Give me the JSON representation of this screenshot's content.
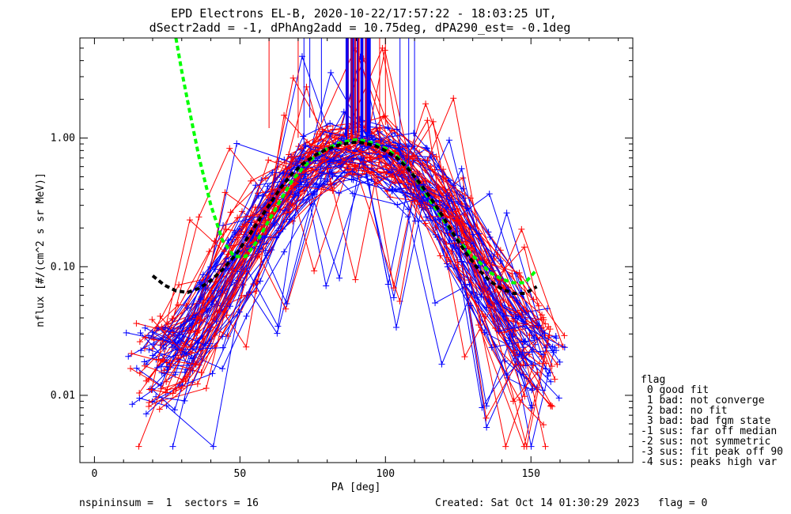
{
  "chart_data": {
    "type": "line",
    "title_lines": [
      "EPD Electrons EL-B, 2020-10-22/17:57:22 - 18:03:25 UT,",
      "dSectr2add = -1, dPhAng2add = 10.75deg, dPA290_est=  -0.1deg"
    ],
    "xlabel": "PA [deg]",
    "ylabel": "nflux [#/(cm^2 s sr MeV)]",
    "xlim": [
      -5,
      185
    ],
    "ylim": [
      0.003,
      6
    ],
    "y_scale": "log",
    "x_ticks": [
      0,
      50,
      100,
      150
    ],
    "y_ticks": [
      0.01,
      0.1,
      1.0
    ],
    "y_tick_labels": [
      "0.01",
      "0.10",
      "1.00"
    ],
    "grid": false,
    "series_colors": {
      "red": "#ff0000",
      "blue": "#0000ff",
      "green": "#00ff00",
      "black": "#000000"
    },
    "fit_curves": [
      {
        "color": "green",
        "x": [
          28,
          30,
          33,
          36,
          40,
          44,
          48,
          52,
          56,
          60,
          64,
          68,
          72,
          76,
          80,
          84,
          88,
          90,
          92,
          96,
          100,
          104,
          108,
          112,
          116,
          120,
          124,
          128,
          132,
          136,
          140,
          144,
          148,
          152
        ],
        "y": [
          6.0,
          3.3,
          1.5,
          0.7,
          0.3,
          0.16,
          0.12,
          0.12,
          0.16,
          0.23,
          0.33,
          0.47,
          0.6,
          0.73,
          0.83,
          0.91,
          0.96,
          0.97,
          0.96,
          0.91,
          0.83,
          0.72,
          0.58,
          0.43,
          0.31,
          0.23,
          0.17,
          0.135,
          0.11,
          0.09,
          0.08,
          0.075,
          0.075,
          0.095
        ]
      },
      {
        "color": "black",
        "x": [
          20,
          24,
          28,
          32,
          36,
          40,
          44,
          48,
          52,
          56,
          60,
          64,
          68,
          72,
          76,
          80,
          84,
          88,
          90,
          92,
          96,
          100,
          104,
          108,
          112,
          116,
          120,
          124,
          128,
          132,
          136,
          140,
          144,
          148,
          152
        ],
        "y": [
          0.085,
          0.072,
          0.065,
          0.063,
          0.068,
          0.078,
          0.095,
          0.12,
          0.16,
          0.22,
          0.3,
          0.41,
          0.53,
          0.64,
          0.74,
          0.82,
          0.88,
          0.92,
          0.93,
          0.92,
          0.88,
          0.8,
          0.7,
          0.57,
          0.44,
          0.33,
          0.24,
          0.17,
          0.125,
          0.095,
          0.077,
          0.067,
          0.062,
          0.062,
          0.07
        ]
      }
    ],
    "legend": {
      "placement": "right-bottom",
      "title": "flag",
      "entries": [
        " 0 good fit",
        " 1 bad: not converge",
        " 2 bad: no fit",
        " 3 bad: bad fgm state",
        "-1 sus: far off median",
        "-2 sus: not symmetric",
        "-3 sus: fit peak off 90",
        "-4 sus: peaks high var"
      ]
    },
    "footer": {
      "left": "nspininsum =  1  sectors = 16",
      "right": "Created: Sat Oct 14 01:30:29 2023   flag = 0"
    },
    "data_note_series_count": 80
  }
}
